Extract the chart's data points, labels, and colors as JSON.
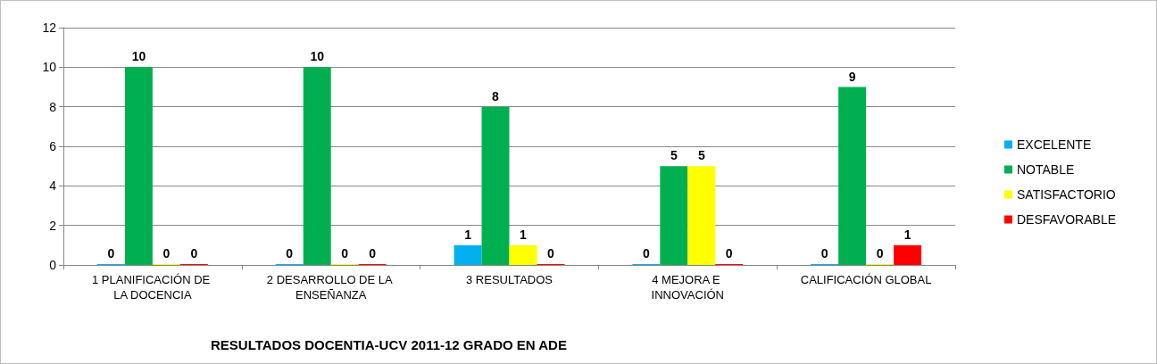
{
  "chart_data": {
    "type": "bar",
    "title": "RESULTADOS DOCENTIA-UCV 2011-12 GRADO EN ADE",
    "categories": [
      "1 PLANIFICACIÓN DE LA DOCENCIA",
      "2 DESARROLLO DE LA ENSEÑANZA",
      "3 RESULTADOS",
      "4 MEJORA E INNOVACIÓN",
      "CALIFICACIÓN GLOBAL"
    ],
    "series": [
      {
        "name": "EXCELENTE",
        "color": "#00b0f0",
        "values": [
          0,
          0,
          1,
          0,
          0
        ]
      },
      {
        "name": "NOTABLE",
        "color": "#00b050",
        "values": [
          10,
          10,
          8,
          5,
          9
        ]
      },
      {
        "name": "SATISFACTORIO",
        "color": "#ffff00",
        "values": [
          0,
          0,
          1,
          5,
          0
        ]
      },
      {
        "name": "DESFAVORABLE",
        "color": "#ff0000",
        "values": [
          0,
          0,
          0,
          0,
          1
        ]
      }
    ],
    "ylim": [
      0,
      12
    ],
    "yticks": [
      0,
      2,
      4,
      6,
      8,
      10,
      12
    ],
    "grid": "y",
    "legend": "right",
    "data_labels": true
  }
}
